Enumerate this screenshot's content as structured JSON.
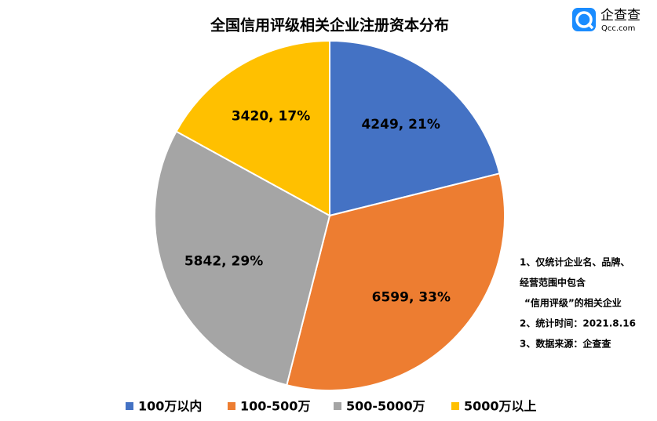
{
  "chart_data": {
    "type": "pie",
    "title": "全国信用评级相关企业注册资本分布",
    "categories": [
      "100万以内",
      "100-500万",
      "500-5000万",
      "5000万以上"
    ],
    "values": [
      4249,
      6599,
      5842,
      3420
    ],
    "value_labels": [
      "4249, 21%",
      "6599, 33%",
      "5842, 29%",
      "3420, 17%"
    ],
    "colors": [
      "#4472c4",
      "#ed7d31",
      "#a5a5a5",
      "#ffc000"
    ],
    "legend": "bottom"
  },
  "notes": [
    "1、仅统计企业名、品牌、",
    "经营范围中包含",
    "“信用评级”的相关企业",
    "2、统计时间：2021.8.16",
    "3、数据来源：企查查"
  ],
  "logo": {
    "name": "企查查",
    "url": "Qcc.com"
  }
}
